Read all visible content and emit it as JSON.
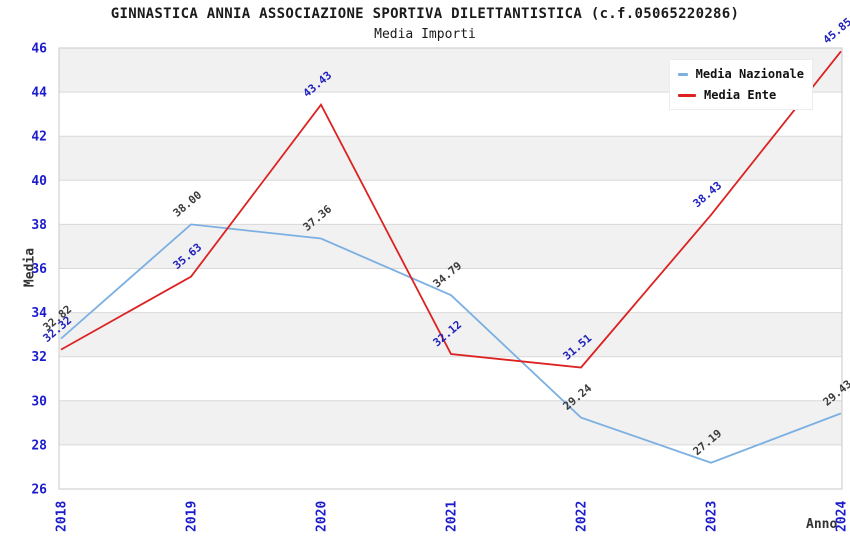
{
  "header": {
    "title": "GINNASTICA ANNIA ASSOCIAZIONE SPORTIVA DILETTANTISTICA (c.f.05065220286)",
    "subtitle": "Media Importi"
  },
  "colors": {
    "band": "#f1f1f1",
    "grid": "#d9d9d9",
    "border": "#c9c9c9",
    "tick_label": "#1c1ccd",
    "axis_title": "#333333"
  },
  "chart_data": {
    "type": "line",
    "title": "GINNASTICA ANNIA ASSOCIAZIONE SPORTIVA DILETTANTISTICA (c.f.05065220286)",
    "subtitle": "Media Importi",
    "xlabel": "Anno",
    "ylabel": "Media",
    "categories": [
      "2018",
      "2019",
      "2020",
      "2021",
      "2022",
      "2023",
      "2024"
    ],
    "series": [
      {
        "name": "Media Nazionale",
        "color": "#7cb0e2",
        "label_color": "#3d3d3d",
        "values": [
          32.82,
          38.0,
          37.36,
          34.79,
          29.24,
          27.19,
          29.43
        ]
      },
      {
        "name": "Media Ente",
        "color": "#dd2222",
        "label_color": "#2222bb",
        "values": [
          32.32,
          35.63,
          43.43,
          32.12,
          31.51,
          38.43,
          45.85
        ]
      }
    ],
    "ylim": [
      26,
      46
    ],
    "ytick_step": 2,
    "yticks": [
      26,
      28,
      30,
      32,
      34,
      36,
      38,
      40,
      42,
      44,
      46
    ],
    "value_decimals": 2,
    "legend_position": "top-right",
    "grid": "horizontal-bands"
  }
}
